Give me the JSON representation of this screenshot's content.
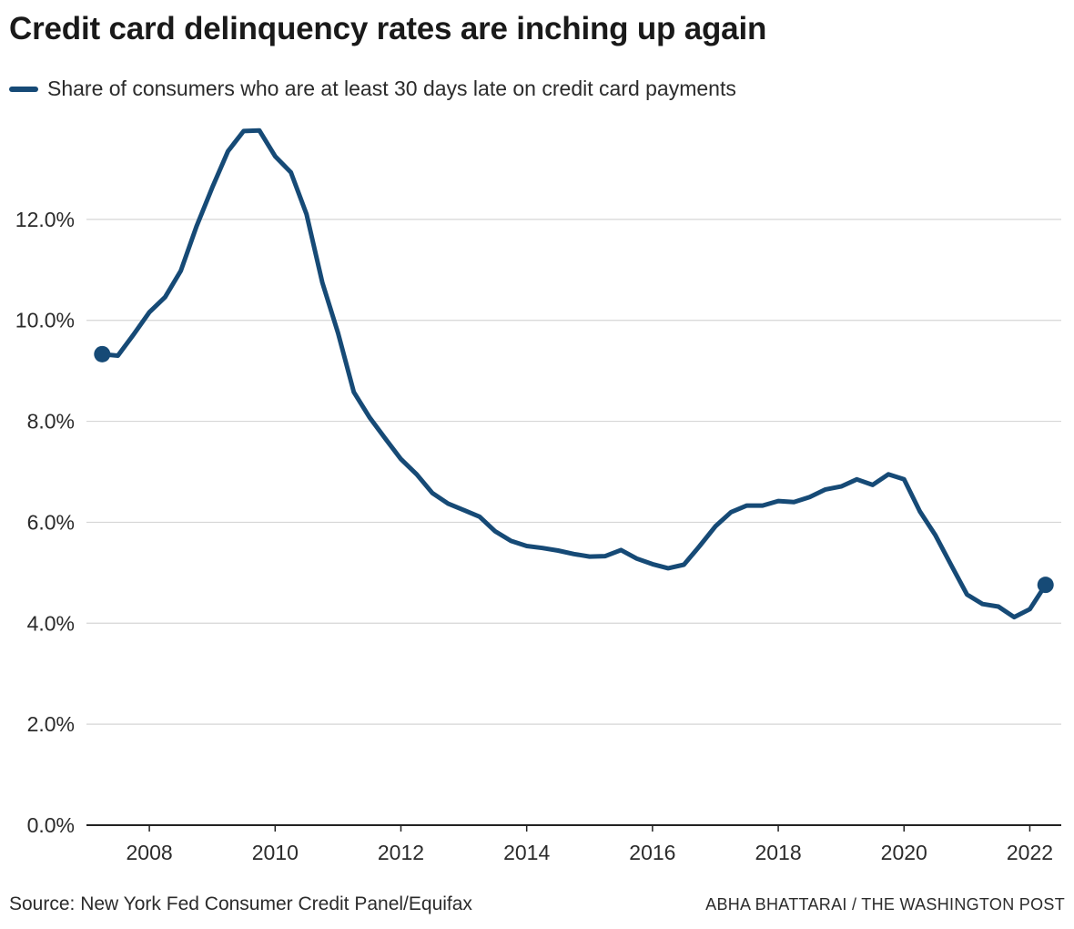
{
  "header": {
    "title": "Credit card delinquency rates are inching up again"
  },
  "footer": {
    "source": "Source: New York Fed Consumer Credit Panel/Equifax",
    "credit": "ABHA BHATTARAI / THE WASHINGTON POST"
  },
  "colors": {
    "series": "#164a76",
    "grid": "#d6d6d6",
    "axis": "#222222"
  },
  "chart_data": {
    "type": "line",
    "title": "Credit card delinquency rates are inching up again",
    "xlabel": "",
    "ylabel": "",
    "xlim": [
      2007.0,
      2022.5
    ],
    "ylim": [
      0,
      14
    ],
    "grid": true,
    "legend": "top-left",
    "y_ticks": [
      0,
      2,
      4,
      6,
      8,
      10,
      12
    ],
    "y_tick_labels": [
      "0.0%",
      "2.0%",
      "4.0%",
      "6.0%",
      "8.0%",
      "10.0%",
      "12.0%"
    ],
    "x_ticks": [
      2008,
      2010,
      2012,
      2014,
      2016,
      2018,
      2020,
      2022
    ],
    "x_tick_labels": [
      "2008",
      "2010",
      "2012",
      "2014",
      "2016",
      "2018",
      "2020",
      "2022"
    ],
    "series": [
      {
        "name": "Share of consumers who are at least 30 days late on credit card payments",
        "endpoint_markers": true,
        "x": [
          2007.25,
          2007.5,
          2007.75,
          2008.0,
          2008.25,
          2008.5,
          2008.75,
          2009.0,
          2009.25,
          2009.5,
          2009.75,
          2010.0,
          2010.25,
          2010.5,
          2010.75,
          2011.0,
          2011.25,
          2011.5,
          2011.75,
          2012.0,
          2012.25,
          2012.5,
          2012.75,
          2013.0,
          2013.25,
          2013.5,
          2013.75,
          2014.0,
          2014.25,
          2014.5,
          2014.75,
          2015.0,
          2015.25,
          2015.5,
          2015.75,
          2016.0,
          2016.25,
          2016.5,
          2016.75,
          2017.0,
          2017.25,
          2017.5,
          2017.75,
          2018.0,
          2018.25,
          2018.5,
          2018.75,
          2019.0,
          2019.25,
          2019.5,
          2019.75,
          2020.0,
          2020.25,
          2020.5,
          2020.75,
          2021.0,
          2021.25,
          2021.5,
          2021.75,
          2022.0,
          2022.25
        ],
        "values": [
          9.33,
          9.3,
          9.72,
          10.16,
          10.46,
          10.98,
          11.86,
          12.63,
          13.35,
          13.75,
          13.76,
          13.25,
          12.93,
          12.1,
          10.75,
          9.75,
          8.58,
          8.08,
          7.66,
          7.25,
          6.95,
          6.58,
          6.37,
          6.24,
          6.11,
          5.82,
          5.63,
          5.53,
          5.49,
          5.44,
          5.37,
          5.32,
          5.33,
          5.45,
          5.28,
          5.17,
          5.09,
          5.16,
          5.53,
          5.92,
          6.2,
          6.33,
          6.33,
          6.42,
          6.4,
          6.5,
          6.65,
          6.71,
          6.85,
          6.74,
          6.95,
          6.85,
          6.22,
          5.74,
          5.15,
          4.57,
          4.38,
          4.33,
          4.12,
          4.28,
          4.76
        ]
      }
    ]
  }
}
